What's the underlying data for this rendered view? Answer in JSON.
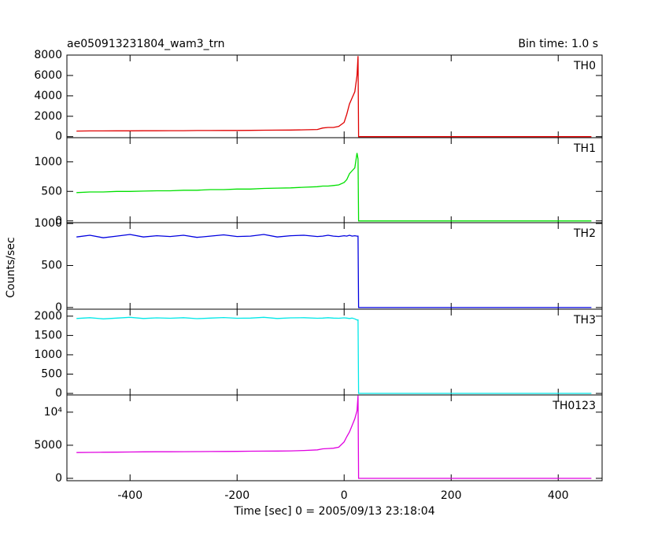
{
  "chart_data": [
    {
      "type": "line",
      "title": "ae050913231804_wam3_trn",
      "subtitle": "Bin time: 1.0 s",
      "ylabel": "Counts/sec",
      "series": [
        {
          "name": "TH0",
          "color": "#e00000",
          "values": [
            550,
            560,
            560,
            570,
            570,
            580,
            580,
            590,
            590,
            600,
            600,
            610,
            610,
            620,
            630,
            640,
            650,
            670,
            700,
            850,
            900,
            900,
            1000,
            1400,
            2200,
            3200,
            3800,
            4400,
            6000,
            7900,
            0,
            0,
            0,
            0,
            0,
            0,
            0,
            0,
            0,
            0,
            0,
            0
          ]
        }
      ],
      "x": [
        -500,
        -475,
        -450,
        -425,
        -400,
        -375,
        -350,
        -325,
        -300,
        -275,
        -250,
        -225,
        -200,
        -175,
        -150,
        -125,
        -100,
        -75,
        -50,
        -40,
        -30,
        -20,
        -10,
        0,
        5,
        10,
        15,
        20,
        24,
        26,
        27,
        28,
        50,
        100,
        150,
        200,
        250,
        300,
        350,
        400,
        450,
        462
      ],
      "xlim": [
        -518,
        482
      ],
      "xticks": [
        -400,
        -200,
        0,
        200,
        400
      ],
      "ylim": [
        -100,
        8000
      ],
      "yticks": [
        0,
        2000,
        4000,
        6000,
        8000
      ]
    },
    {
      "type": "line",
      "series": [
        {
          "name": "TH1",
          "color": "#00e000",
          "values": [
            480,
            490,
            490,
            500,
            500,
            505,
            510,
            510,
            520,
            520,
            530,
            530,
            540,
            540,
            550,
            555,
            560,
            570,
            580,
            590,
            590,
            600,
            610,
            650,
            700,
            800,
            850,
            900,
            1150,
            1050,
            0,
            0,
            0,
            0,
            0,
            0,
            0,
            0,
            0,
            0,
            0,
            0
          ]
        }
      ],
      "x": [
        -500,
        -475,
        -450,
        -425,
        -400,
        -375,
        -350,
        -325,
        -300,
        -275,
        -250,
        -225,
        -200,
        -175,
        -150,
        -125,
        -100,
        -75,
        -50,
        -40,
        -30,
        -20,
        -10,
        0,
        5,
        10,
        15,
        20,
        24,
        26,
        27,
        28,
        50,
        100,
        150,
        200,
        250,
        300,
        350,
        400,
        450,
        462
      ],
      "xlim": [
        -518,
        482
      ],
      "xticks": [
        -400,
        -200,
        0,
        200,
        400
      ],
      "ylim": [
        -30,
        1410
      ],
      "yticks": [
        0,
        500,
        1000
      ]
    },
    {
      "type": "line",
      "series": [
        {
          "name": "TH2",
          "color": "#0000e0",
          "values": [
            840,
            860,
            830,
            850,
            870,
            840,
            855,
            845,
            860,
            835,
            850,
            865,
            845,
            850,
            870,
            840,
            855,
            860,
            845,
            850,
            860,
            850,
            845,
            855,
            850,
            860,
            850,
            855,
            850,
            850,
            0,
            0,
            0,
            0,
            0,
            0,
            0,
            0,
            0,
            0,
            0,
            0
          ]
        }
      ],
      "x": [
        -500,
        -475,
        -450,
        -425,
        -400,
        -375,
        -350,
        -325,
        -300,
        -275,
        -250,
        -225,
        -200,
        -175,
        -150,
        -125,
        -100,
        -75,
        -50,
        -40,
        -30,
        -20,
        -10,
        0,
        5,
        10,
        15,
        20,
        24,
        26,
        27,
        28,
        50,
        100,
        150,
        200,
        250,
        300,
        350,
        400,
        450,
        462
      ],
      "xlim": [
        -518,
        482
      ],
      "xticks": [
        -400,
        -200,
        0,
        200,
        400
      ],
      "ylim": [
        -20,
        1010
      ],
      "yticks": [
        0,
        500,
        1000
      ]
    },
    {
      "type": "line",
      "series": [
        {
          "name": "TH3",
          "color": "#00e8e8",
          "values": [
            1940,
            1960,
            1930,
            1950,
            1970,
            1940,
            1955,
            1945,
            1960,
            1935,
            1950,
            1965,
            1945,
            1950,
            1970,
            1940,
            1955,
            1960,
            1945,
            1950,
            1960,
            1950,
            1945,
            1955,
            1950,
            1940,
            1950,
            1930,
            1900,
            1900,
            0,
            0,
            0,
            0,
            0,
            0,
            0,
            0,
            0,
            0,
            0,
            0
          ]
        }
      ],
      "x": [
        -500,
        -475,
        -450,
        -425,
        -400,
        -375,
        -350,
        -325,
        -300,
        -275,
        -250,
        -225,
        -200,
        -175,
        -150,
        -125,
        -100,
        -75,
        -50,
        -40,
        -30,
        -20,
        -10,
        0,
        5,
        10,
        15,
        20,
        24,
        26,
        27,
        28,
        50,
        100,
        150,
        200,
        250,
        300,
        350,
        400,
        450,
        462
      ],
      "xlim": [
        -518,
        482
      ],
      "xticks": [
        -400,
        -200,
        0,
        200,
        400
      ],
      "ylim": [
        -40,
        2180
      ],
      "yticks": [
        0,
        500,
        1000,
        1500,
        2000
      ]
    },
    {
      "type": "line",
      "xlabel": "Time [sec] 0 = 2005/09/13 23:18:04",
      "series": [
        {
          "name": "TH0123",
          "color": "#e000e0",
          "values": [
            3900,
            3920,
            3940,
            3960,
            3980,
            4000,
            4010,
            4020,
            4030,
            4040,
            4050,
            4060,
            4080,
            4100,
            4110,
            4120,
            4150,
            4200,
            4300,
            4450,
            4500,
            4550,
            4700,
            5500,
            6300,
            7000,
            8000,
            9000,
            10200,
            12500,
            0,
            0,
            0,
            0,
            0,
            0,
            0,
            0,
            0,
            0,
            0,
            0
          ]
        }
      ],
      "x": [
        -500,
        -475,
        -450,
        -425,
        -400,
        -375,
        -350,
        -325,
        -300,
        -275,
        -250,
        -225,
        -200,
        -175,
        -150,
        -125,
        -100,
        -75,
        -50,
        -40,
        -30,
        -20,
        -10,
        0,
        5,
        10,
        15,
        20,
        24,
        26,
        27,
        28,
        50,
        100,
        150,
        200,
        250,
        300,
        350,
        400,
        450,
        462
      ],
      "xlim": [
        -518,
        482
      ],
      "xticks": [
        -400,
        -200,
        0,
        200,
        400
      ],
      "ylim": [
        -360,
        12600
      ],
      "yticks": [
        0,
        5000,
        {
          "value": 10000,
          "label": "10⁴"
        }
      ]
    }
  ]
}
